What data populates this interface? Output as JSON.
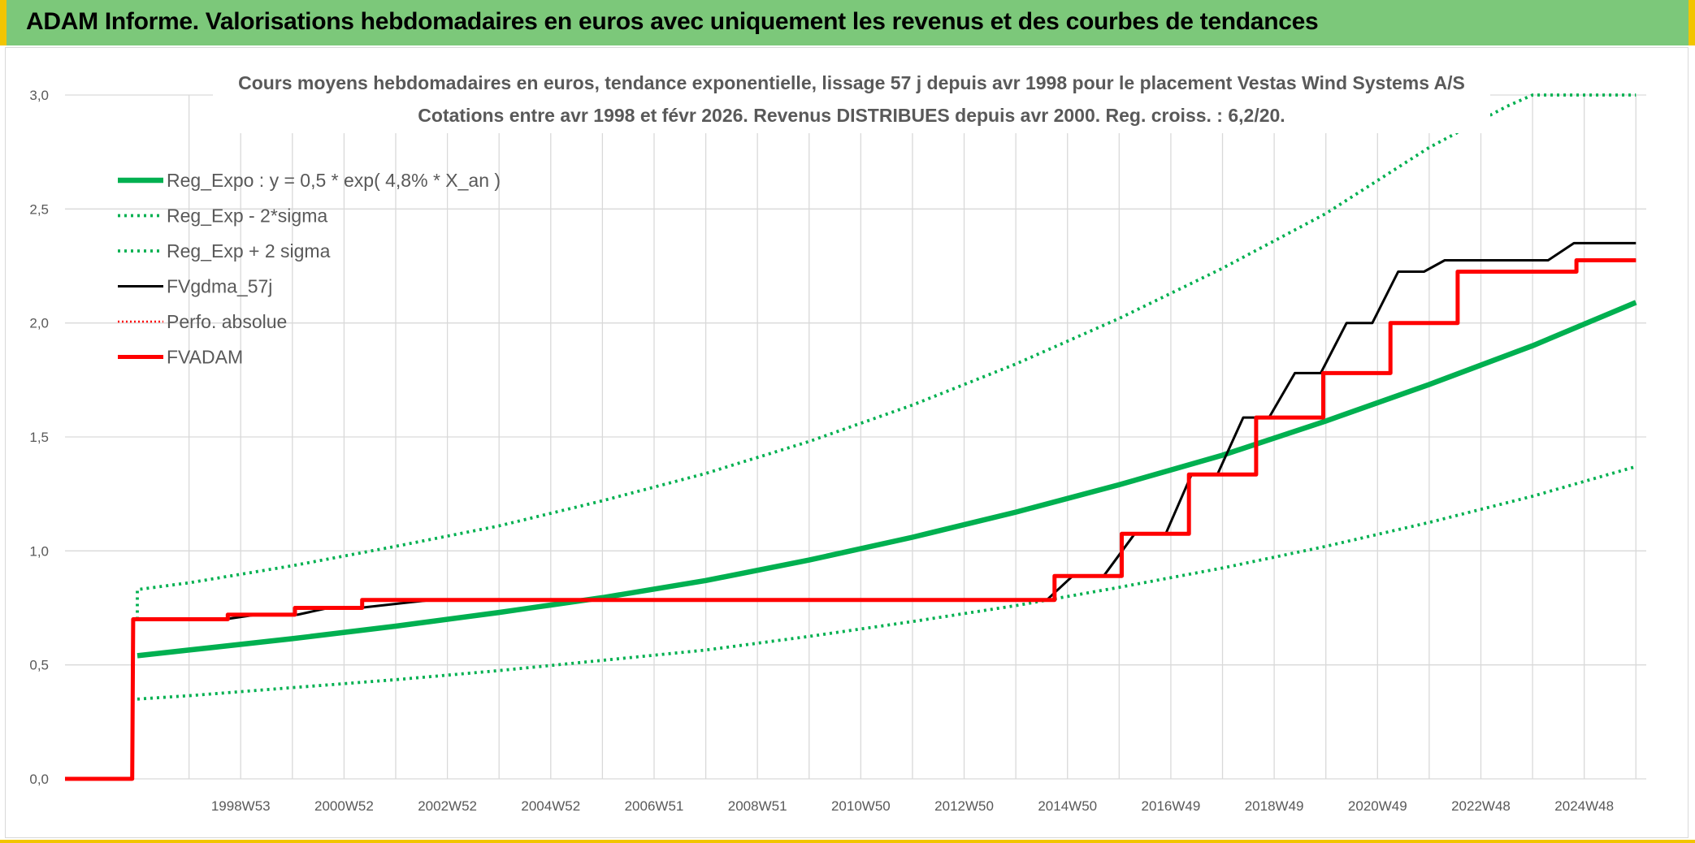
{
  "header": {
    "title": "ADAM Informe. Valorisations hebdomadaires en euros avec uniquement les revenus et des courbes de tendances"
  },
  "colors": {
    "banner": "#7cc87a",
    "accent": "#f2c500",
    "reg": "#00b050",
    "fv": "#000000",
    "adam": "#ff0000",
    "grid": "#d9d9d9"
  },
  "chart_data": {
    "type": "line",
    "title": "Cours moyens hebdomadaires en euros, tendance exponentielle, lissage 57 j depuis avr 1998 pour le placement Vestas Wind Systems A/S",
    "subtitle": "Cotations entre avr 1998 et févr 2026. Revenus DISTRIBUES depuis avr 2000. Reg. croiss. : 6,2/20.",
    "xlabel": "",
    "ylabel": "",
    "xlim": [
      1995.6,
      2026.2
    ],
    "ylim": [
      0,
      3.0
    ],
    "grid": true,
    "legend_position": "top-left",
    "y_ticks": [
      "0,0",
      "0,5",
      "1,0",
      "1,5",
      "2,0",
      "2,5",
      "3,0"
    ],
    "x_ticks": [
      "1998W53",
      "2000W52",
      "2002W52",
      "2004W52",
      "2006W51",
      "2008W51",
      "2010W50",
      "2012W50",
      "2014W50",
      "2016W49",
      "2018W49",
      "2020W49",
      "2022W48",
      "2024W48"
    ],
    "series": [
      {
        "name": "Reg_Expo : y = 0,5 * exp( 4,8% *  X_an )",
        "style": "solid-thick",
        "color": "#00b050",
        "x": [
          1997.0,
          1998.0,
          2000.0,
          2002.0,
          2004.0,
          2006.0,
          2008.0,
          2010.0,
          2012.0,
          2014.0,
          2016.0,
          2018.0,
          2020.0,
          2022.0,
          2024.0,
          2026.0
        ],
        "y": [
          0.54,
          0.565,
          0.615,
          0.67,
          0.73,
          0.795,
          0.87,
          0.96,
          1.06,
          1.17,
          1.29,
          1.42,
          1.57,
          1.73,
          1.9,
          2.09
        ]
      },
      {
        "name": "Reg_Exp - 2*sigma",
        "style": "dotted",
        "color": "#00b050",
        "x": [
          1997.0,
          1998.0,
          2000.0,
          2002.0,
          2004.0,
          2006.0,
          2008.0,
          2010.0,
          2012.0,
          2014.0,
          2016.0,
          2018.0,
          2020.0,
          2022.0,
          2024.0,
          2026.0
        ],
        "y": [
          0.35,
          0.365,
          0.4,
          0.435,
          0.475,
          0.52,
          0.565,
          0.625,
          0.69,
          0.76,
          0.84,
          0.925,
          1.02,
          1.125,
          1.24,
          1.37
        ]
      },
      {
        "name": "Reg_Exp + 2 sigma",
        "style": "dotted",
        "color": "#00b050",
        "x": [
          1997.0,
          1997.0,
          1998.0,
          2000.0,
          2002.0,
          2004.0,
          2006.0,
          2008.0,
          2010.0,
          2012.0,
          2014.0,
          2016.0,
          2018.0,
          2020.0,
          2022.0,
          2023.5,
          2024.0,
          2026.0
        ],
        "y": [
          0.7,
          0.83,
          0.86,
          0.935,
          1.02,
          1.11,
          1.22,
          1.34,
          1.48,
          1.64,
          1.82,
          2.02,
          2.24,
          2.48,
          2.77,
          2.95,
          3.0,
          3.0
        ]
      },
      {
        "name": "FVgdma_57j",
        "style": "solid",
        "color": "#000000",
        "x": [
          1995.6,
          1996.9,
          1996.92,
          1998.7,
          1999.3,
          2000.1,
          2000.7,
          2001.3,
          2002.7,
          2014.6,
          2015.1,
          2015.7,
          2016.3,
          2016.9,
          2017.4,
          2017.9,
          2018.4,
          2018.9,
          2019.4,
          2019.9,
          2020.4,
          2020.9,
          2021.4,
          2021.9,
          2022.3,
          2024.3,
          2024.8,
          2026.0
        ],
        "y": [
          0,
          0,
          0.7,
          0.7,
          0.72,
          0.72,
          0.75,
          0.75,
          0.785,
          0.785,
          0.89,
          0.89,
          1.075,
          1.075,
          1.335,
          1.335,
          1.585,
          1.585,
          1.78,
          1.78,
          2.0,
          2.0,
          2.225,
          2.225,
          2.275,
          2.275,
          2.35,
          2.35
        ]
      },
      {
        "name": "Perfo. absolue",
        "style": "dotted",
        "color": "#ff0000",
        "x": [
          1995.6,
          1996.9,
          1996.92,
          1998.75,
          1998.75,
          2000.05,
          2000.05,
          2001.35,
          2001.35,
          2014.75,
          2014.75,
          2016.05,
          2016.05,
          2017.35,
          2017.35,
          2018.65,
          2018.65,
          2019.95,
          2019.95,
          2021.25,
          2021.25,
          2022.55,
          2022.55,
          2024.85,
          2024.85,
          2026.0
        ],
        "y": [
          0,
          0,
          0.7,
          0.7,
          0.72,
          0.72,
          0.75,
          0.75,
          0.785,
          0.785,
          0.89,
          0.89,
          1.075,
          1.075,
          1.335,
          1.335,
          1.585,
          1.585,
          1.78,
          1.78,
          2.0,
          2.0,
          2.225,
          2.225,
          2.275,
          2.275
        ]
      },
      {
        "name": "FVADAM",
        "style": "solid-thick",
        "color": "#ff0000",
        "x": [
          1995.6,
          1996.9,
          1996.92,
          1998.75,
          1998.75,
          2000.05,
          2000.05,
          2001.35,
          2001.35,
          2014.75,
          2014.75,
          2016.05,
          2016.05,
          2017.35,
          2017.35,
          2018.65,
          2018.65,
          2019.95,
          2019.95,
          2021.25,
          2021.25,
          2022.55,
          2022.55,
          2024.85,
          2024.85,
          2026.0
        ],
        "y": [
          0,
          0,
          0.7,
          0.7,
          0.72,
          0.72,
          0.75,
          0.75,
          0.785,
          0.785,
          0.89,
          0.89,
          1.075,
          1.075,
          1.335,
          1.335,
          1.585,
          1.585,
          1.78,
          1.78,
          2.0,
          2.0,
          2.225,
          2.225,
          2.275,
          2.275
        ]
      }
    ]
  }
}
